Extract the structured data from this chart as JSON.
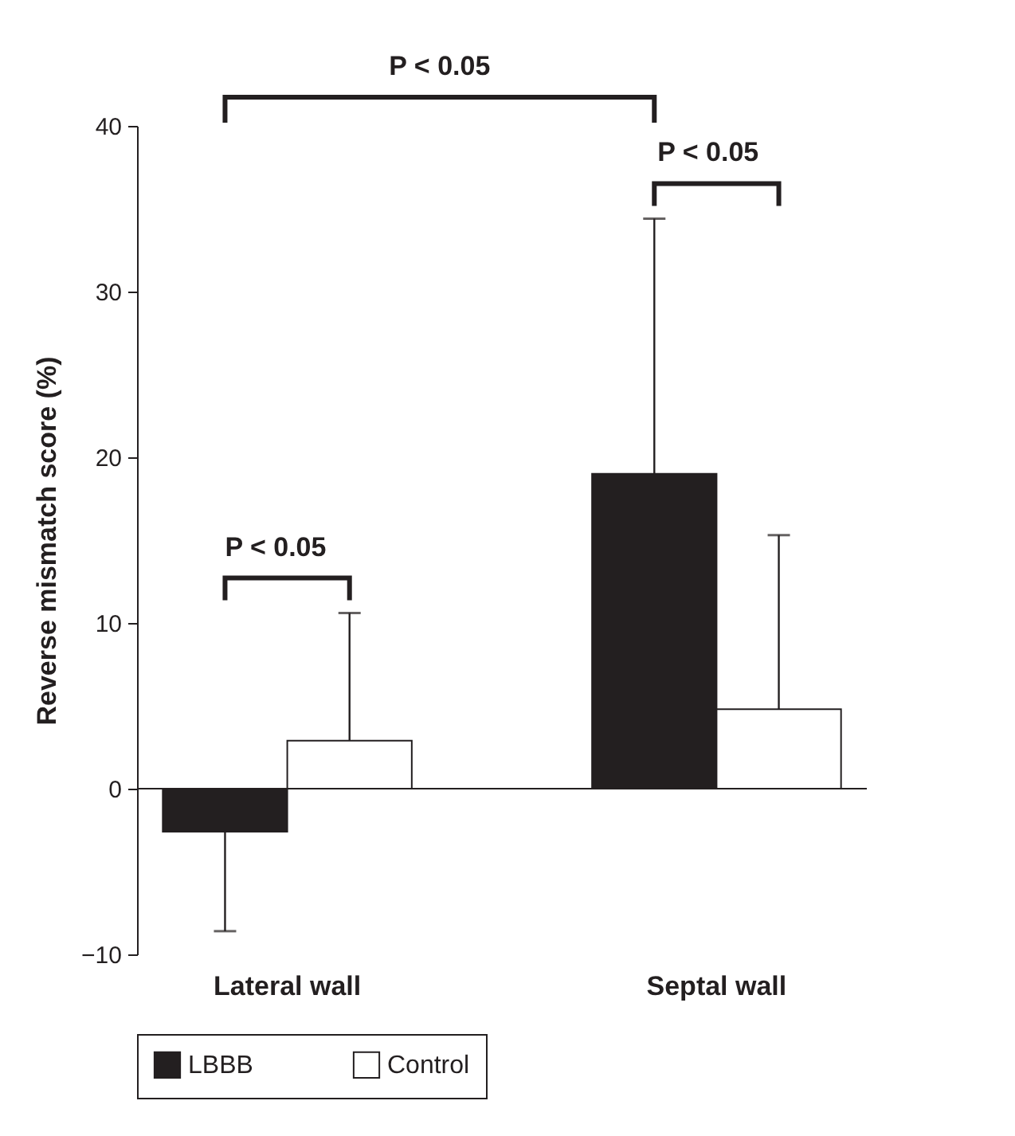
{
  "chart_data": {
    "type": "bar",
    "ylabel": "Reverse mismatch score (%)",
    "categories": [
      "Lateral wall",
      "Septal wall"
    ],
    "series": [
      {
        "name": "LBBB",
        "color": "#231f20",
        "values": [
          -2.6,
          19.0
        ],
        "errors": [
          [
            -8.6,
            -2.6
          ],
          [
            19.0,
            34.4
          ]
        ]
      },
      {
        "name": "Control",
        "color": "#ffffff",
        "values": [
          2.9,
          4.8
        ],
        "errors": [
          [
            2.9,
            10.6
          ],
          [
            4.8,
            15.3
          ]
        ]
      }
    ],
    "ref_lines": [
      {
        "axis": "y",
        "value": 0
      }
    ],
    "ylim": [
      -10,
      40
    ],
    "yticks": [
      -10,
      0,
      10,
      20,
      30,
      40
    ],
    "grid": false,
    "legend": "bottom",
    "annotations": [
      "P < 0.05",
      "P < 0.05",
      "P < 0.05"
    ]
  }
}
